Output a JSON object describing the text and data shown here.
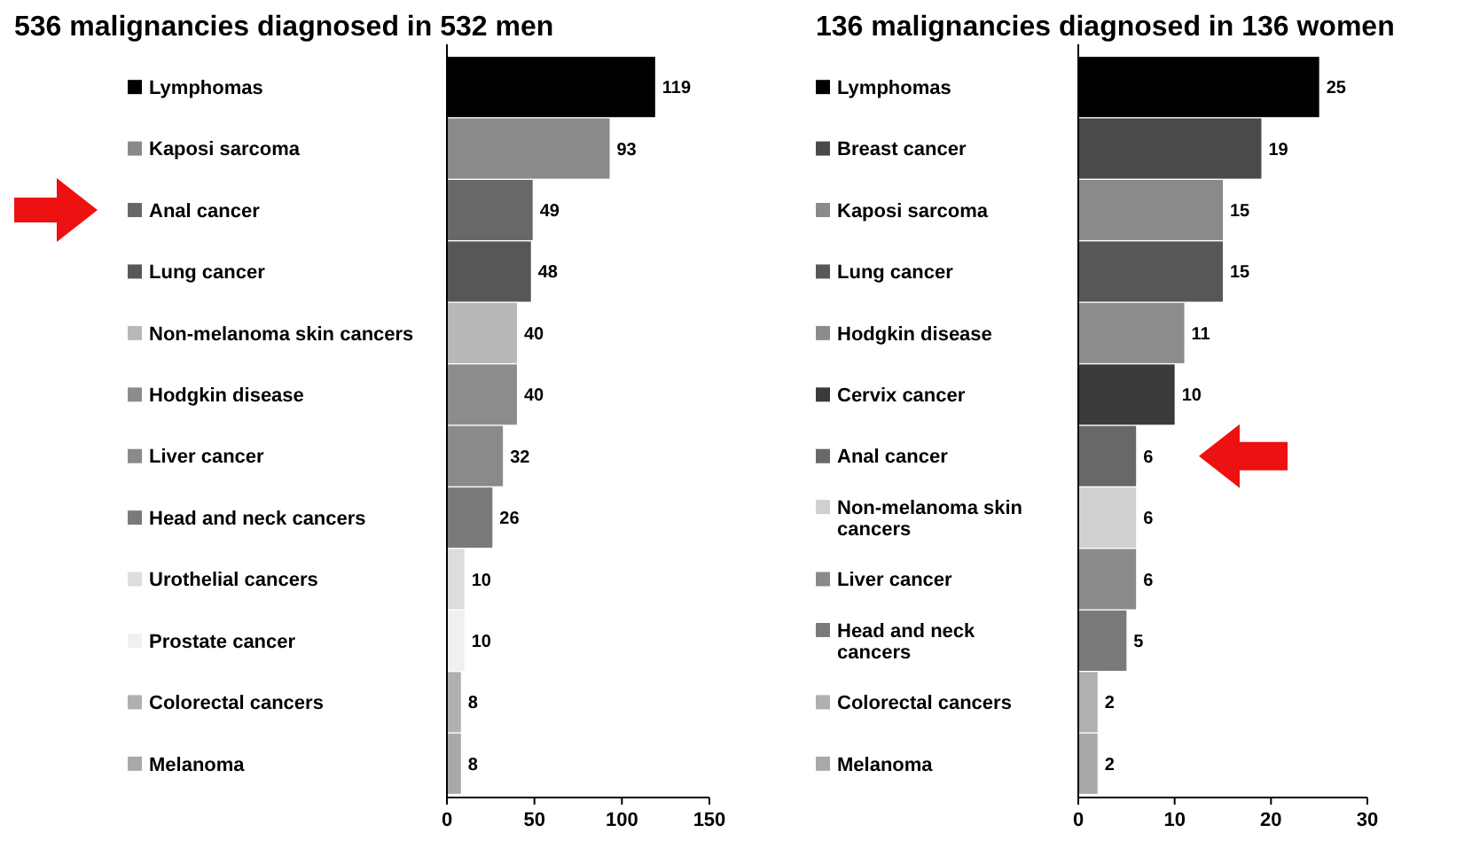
{
  "chart_data": [
    {
      "type": "bar",
      "orientation": "horizontal",
      "title": "536 malignancies diagnosed in 532 men",
      "categories": [
        "Lymphomas",
        "Kaposi sarcoma",
        "Anal cancer",
        "Lung cancer",
        "Non-melanoma skin cancers",
        "Hodgkin disease",
        "Liver cancer",
        "Head and neck cancers",
        "Urothelial cancers",
        "Prostate cancer",
        "Colorectal cancers",
        "Melanoma"
      ],
      "values": [
        119,
        93,
        49,
        48,
        40,
        40,
        32,
        26,
        10,
        10,
        8,
        8
      ],
      "colors": [
        "#000000",
        "#8a8a8a",
        "#686868",
        "#575757",
        "#b8b8b8",
        "#8c8c8c",
        "#8a8a8a",
        "#7a7a7a",
        "#dddddd",
        "#f0f0f0",
        "#b0b0b0",
        "#a8a8a8"
      ],
      "xlim": [
        0,
        150
      ],
      "xticks": [
        0,
        50,
        100,
        150
      ],
      "data_labels": true
    },
    {
      "type": "bar",
      "orientation": "horizontal",
      "title": "136 malignancies diagnosed in 136 women",
      "categories": [
        "Lymphomas",
        "Breast cancer",
        "Kaposi sarcoma",
        "Lung cancer",
        "Hodgkin disease",
        "Cervix cancer",
        "Anal cancer",
        "Non-melanoma skin cancers",
        "Liver cancer",
        "Head and neck cancers",
        "Colorectal cancers",
        "Melanoma"
      ],
      "values": [
        25,
        19,
        15,
        15,
        11,
        10,
        6,
        6,
        6,
        5,
        2,
        2
      ],
      "colors": [
        "#000000",
        "#4a4a4a",
        "#8a8a8a",
        "#575757",
        "#8c8c8c",
        "#3a3a3a",
        "#686868",
        "#d0d0d0",
        "#8a8a8a",
        "#7a7a7a",
        "#b0b0b0",
        "#a8a8a8"
      ],
      "xlim": [
        0,
        30
      ],
      "xticks": [
        0,
        10,
        20,
        30
      ],
      "data_labels": true
    }
  ]
}
